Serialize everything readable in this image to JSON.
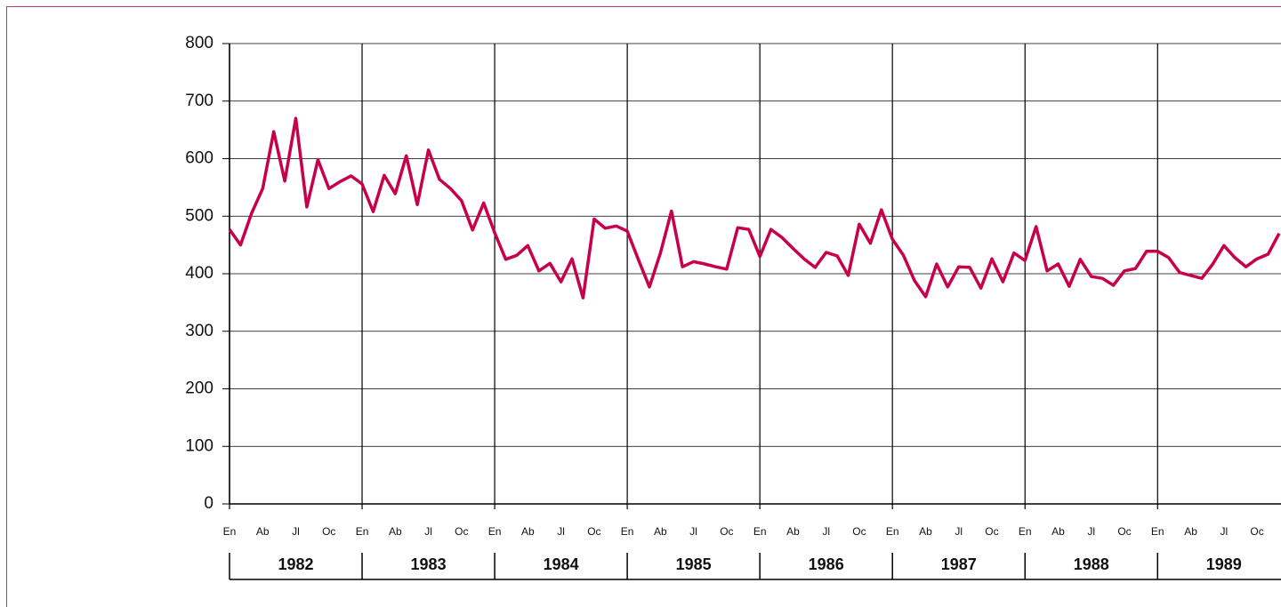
{
  "chart_data": {
    "type": "line",
    "categories": [
      "En",
      null,
      null,
      "Ab",
      null,
      null,
      "Jl",
      null,
      null,
      "Oc",
      null,
      null,
      "En",
      null,
      null,
      "Ab",
      null,
      null,
      "Jl",
      null,
      null,
      "Oc",
      null,
      null,
      "En",
      null,
      null,
      "Ab",
      null,
      null,
      "Jl",
      null,
      null,
      "Oc",
      null,
      null,
      "En",
      null,
      null,
      "Ab",
      null,
      null,
      "Jl",
      null,
      null,
      "Oc",
      null,
      null,
      "En",
      null,
      null,
      "Ab",
      null,
      null,
      "Jl",
      null,
      null,
      "Oc",
      null,
      null,
      "En",
      null,
      null,
      "Ab",
      null,
      null,
      "Jl",
      null,
      null,
      "Oc",
      null,
      null,
      "En",
      null,
      null,
      "Ab",
      null,
      null,
      "Jl",
      null,
      null,
      "Oc",
      null,
      null,
      "En",
      null,
      null,
      "Ab",
      null,
      null,
      "Jl",
      null,
      null,
      "Oc",
      null,
      null
    ],
    "years": [
      "1982",
      "1983",
      "1984",
      "1985",
      "1986",
      "1987",
      "1988",
      "1989"
    ],
    "values": [
      477,
      450,
      505,
      548,
      647,
      561,
      670,
      516,
      598,
      548,
      560,
      570,
      556,
      508,
      571,
      539,
      605,
      520,
      615,
      564,
      548,
      527,
      476,
      523,
      471,
      425,
      432,
      449,
      405,
      418,
      386,
      426,
      358,
      495,
      479,
      483,
      474,
      425,
      377,
      436,
      509,
      412,
      421,
      417,
      412,
      408,
      480,
      477,
      430,
      477,
      463,
      444,
      426,
      411,
      437,
      431,
      397,
      486,
      453,
      511,
      460,
      432,
      388,
      360,
      417,
      377,
      412,
      411,
      375,
      426,
      386,
      436,
      423,
      482,
      405,
      417,
      378,
      425,
      395,
      392,
      380,
      405,
      409,
      439,
      439,
      428,
      402,
      397,
      392,
      417,
      449,
      428,
      412,
      426,
      434,
      470
    ],
    "color": "#c8004b",
    "ylim": [
      0,
      800
    ],
    "yticks": [
      0,
      100,
      200,
      300,
      400,
      500,
      600,
      700,
      800
    ],
    "grid": true
  }
}
